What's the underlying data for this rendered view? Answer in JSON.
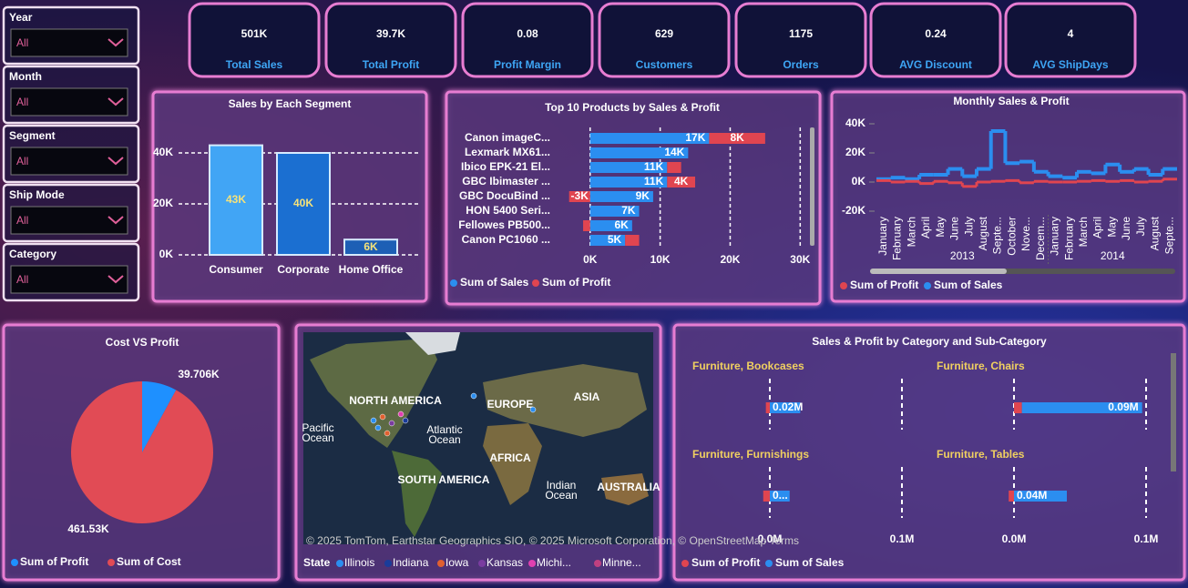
{
  "filters": [
    {
      "label": "Year",
      "value": "All"
    },
    {
      "label": "Month",
      "value": "All"
    },
    {
      "label": "Segment",
      "value": "All"
    },
    {
      "label": "Ship Mode",
      "value": "All"
    },
    {
      "label": "Category",
      "value": "All"
    }
  ],
  "kpis": [
    {
      "value": "501K",
      "label": "Total Sales"
    },
    {
      "value": "39.7K",
      "label": "Total Profit"
    },
    {
      "value": "0.08",
      "label": "Profit Margin"
    },
    {
      "value": "629",
      "label": "Customers"
    },
    {
      "value": "1175",
      "label": "Orders"
    },
    {
      "value": "0.24",
      "label": "AVG Discount"
    },
    {
      "value": "4",
      "label": "AVG ShipDays"
    }
  ],
  "chart_data": [
    {
      "type": "bar",
      "title": "Sales by Each Segment",
      "categories": [
        "Consumer",
        "Corporate",
        "Home Office"
      ],
      "values": [
        43000,
        40000,
        6000
      ],
      "value_labels": [
        "43K",
        "40K",
        "6K"
      ],
      "colors": [
        "#41a5f5",
        "#1b6fd1",
        "#1d5fb5"
      ],
      "ylim": [
        0,
        45000
      ],
      "yticks": [
        {
          "value": 0,
          "label": "0K"
        },
        {
          "value": 20000,
          "label": "20K"
        },
        {
          "value": 40000,
          "label": "40K"
        }
      ],
      "grid": true
    },
    {
      "type": "hbar",
      "title": "Top 10 Products by Sales & Profit",
      "categories": [
        "Canon imageC...",
        "Lexmark MX61...",
        "Ibico EPK-21 El...",
        "GBC Ibimaster ...",
        "GBC DocuBind ...",
        "HON 5400 Seri...",
        "Fellowes PB500...",
        "Canon PC1060 ..."
      ],
      "series": [
        {
          "name": "Sum of Sales",
          "color": "#2b8ef0",
          "values": [
            17000,
            14000,
            11000,
            11000,
            9000,
            7000,
            6000,
            5000
          ],
          "value_labels": [
            "17K",
            "14K",
            "11K",
            "11K",
            "9K",
            "7K",
            "6K",
            "5K"
          ]
        },
        {
          "name": "Sum of Profit",
          "color": "#e04550",
          "values": [
            8000,
            0,
            2000,
            4000,
            -3000,
            0,
            -1000,
            2000
          ],
          "value_labels": [
            "8K",
            null,
            null,
            "4K",
            "-3K",
            null,
            null,
            null
          ]
        }
      ],
      "xlim": [
        -4000,
        31000
      ],
      "xticks": [
        {
          "value": 0,
          "label": "0K"
        },
        {
          "value": 10000,
          "label": "10K"
        },
        {
          "value": 20000,
          "label": "20K"
        },
        {
          "value": 30000,
          "label": "30K"
        }
      ],
      "grid": true
    },
    {
      "type": "line",
      "title": "Monthly Sales & Profit",
      "categories": [
        "January",
        "February",
        "March",
        "April",
        "May",
        "June",
        "July",
        "August",
        "Septe...",
        "October",
        "Nove...",
        "Decem...",
        "January",
        "February",
        "March",
        "April",
        "May",
        "June",
        "July",
        "August",
        "Septe..."
      ],
      "x_groups": [
        "2013",
        "2014"
      ],
      "series": [
        {
          "name": "Sum of Profit",
          "color": "#e04550",
          "values": [
            1000,
            0,
            500,
            -1000,
            500,
            -500,
            -3000,
            0,
            500,
            1000,
            -500,
            500,
            0,
            0,
            500,
            1000,
            500,
            1000,
            0,
            500,
            2000
          ]
        },
        {
          "name": "Sum of Sales",
          "color": "#2b8ef0",
          "values": [
            2000,
            3000,
            2000,
            5000,
            5000,
            9000,
            4000,
            9000,
            35000,
            13000,
            14000,
            7000,
            4000,
            3000,
            7000,
            6000,
            12000,
            7000,
            9000,
            5000,
            9000
          ]
        }
      ],
      "ylim": [
        -22000,
        42000
      ],
      "yticks": [
        {
          "value": -20000,
          "label": "-20K"
        },
        {
          "value": 0,
          "label": "0K"
        },
        {
          "value": 20000,
          "label": "20K"
        },
        {
          "value": 40000,
          "label": "40K"
        }
      ],
      "grid": false
    },
    {
      "type": "pie",
      "title": "Cost VS Profit",
      "categories": [
        "Sum of Profit",
        "Sum of Cost"
      ],
      "values": [
        39706,
        461530
      ],
      "value_labels": [
        "39.706K",
        "461.53K"
      ],
      "colors": [
        "#1e90ff",
        "#e14b55"
      ]
    },
    {
      "type": "small-multiples-bar",
      "title": "Sales & Profit by Category and Sub-Category",
      "categories": [
        "Furniture, Bookcases",
        "Furniture, Chairs",
        "Furniture, Furnishings",
        "Furniture, Tables"
      ],
      "series": [
        {
          "name": "Sum of Profit",
          "color": "#e04550",
          "values": [
            -0.003,
            0.006,
            -0.005,
            -0.004
          ],
          "value_labels": [
            null,
            null,
            null,
            null
          ]
        },
        {
          "name": "Sum of Sales",
          "color": "#2b8ef0",
          "values": [
            0.023,
            0.091,
            0.015,
            0.04
          ],
          "value_labels": [
            "0.02M",
            "0.09M",
            "0...",
            "0.04M"
          ]
        }
      ],
      "xlim": [
        -0.01,
        0.105
      ],
      "xticks": [
        {
          "value": 0,
          "label": "0.0M"
        },
        {
          "value": 0.1,
          "label": "0.1M"
        }
      ],
      "grid": true
    }
  ],
  "map": {
    "labels": [
      "NORTH AMERICA",
      "EUROPE",
      "ASIA",
      "Pacific",
      "Ocean",
      "Atlantic",
      "Ocean",
      "AFRICA",
      "SOUTH AMERICA",
      "Indian",
      "Ocean",
      "AUSTRALIA"
    ],
    "attribution": "© 2025 TomTom, Earthstar Geographics SIO, © 2025 Microsoft Corporation, © OpenStreetMap  Terms",
    "legend_title": "State",
    "legend": [
      "Illinois",
      "Indiana",
      "Iowa",
      "Kansas",
      "Michi...",
      "Minne..."
    ]
  }
}
